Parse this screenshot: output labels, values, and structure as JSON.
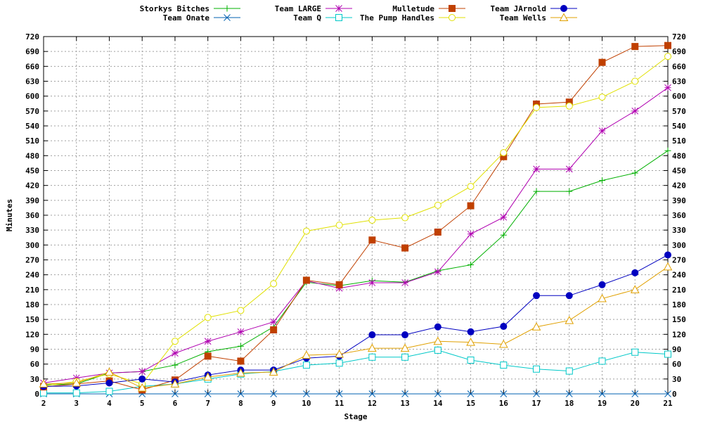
{
  "chart_data": {
    "type": "line",
    "title": "",
    "xlabel": "Stage",
    "ylabel": "Minutes",
    "x": [
      2,
      3,
      4,
      5,
      6,
      7,
      8,
      9,
      10,
      11,
      12,
      13,
      14,
      15,
      16,
      17,
      18,
      19,
      20,
      21
    ],
    "xlim": [
      2,
      21
    ],
    "ylim": [
      0,
      720
    ],
    "yticks": [
      0,
      30,
      60,
      90,
      120,
      150,
      180,
      210,
      240,
      270,
      300,
      330,
      360,
      390,
      420,
      450,
      480,
      510,
      540,
      570,
      600,
      630,
      660,
      690,
      720
    ],
    "xticks": [
      2,
      3,
      4,
      5,
      6,
      7,
      8,
      9,
      10,
      11,
      12,
      13,
      14,
      15,
      16,
      17,
      18,
      19,
      20,
      21
    ],
    "grid": true,
    "y_axis_mirrored_right": true,
    "legend_position": "top",
    "series": [
      {
        "name": "Storkys Bitches",
        "color": "#00b000",
        "marker": "plus",
        "values": [
          18,
          20,
          42,
          45,
          58,
          85,
          96,
          135,
          225,
          218,
          228,
          225,
          248,
          260,
          320,
          408,
          408,
          430,
          445,
          490
        ]
      },
      {
        "name": "Team Onate",
        "color": "#0060b0",
        "marker": "cross",
        "values": [
          0,
          0,
          0,
          0,
          0,
          0,
          0,
          0,
          0,
          0,
          0,
          0,
          0,
          0,
          0,
          0,
          0,
          0,
          0,
          0
        ]
      },
      {
        "name": "Team LARGE",
        "color": "#b000b0",
        "marker": "star",
        "values": [
          22,
          32,
          42,
          45,
          82,
          106,
          125,
          145,
          228,
          213,
          224,
          224,
          246,
          322,
          356,
          453,
          453,
          530,
          570,
          617
        ]
      },
      {
        "name": "Team Q",
        "color": "#00c8c8",
        "marker": "open-square",
        "values": [
          2,
          2,
          5,
          15,
          20,
          30,
          40,
          45,
          58,
          62,
          74,
          74,
          88,
          68,
          58,
          50,
          46,
          66,
          84,
          80
        ]
      },
      {
        "name": "Mulletude",
        "color": "#c04000",
        "marker": "filled-square",
        "values": [
          14,
          20,
          26,
          8,
          28,
          76,
          66,
          129,
          229,
          220,
          310,
          294,
          326,
          379,
          478,
          584,
          588,
          668,
          700,
          702
        ]
      },
      {
        "name": "The Pump Handles",
        "color": "#e0e000",
        "marker": "open-circle",
        "values": [
          16,
          25,
          40,
          20,
          106,
          154,
          168,
          222,
          328,
          340,
          350,
          355,
          380,
          418,
          486,
          577,
          580,
          598,
          630,
          680
        ]
      },
      {
        "name": "Team JArnold",
        "color": "#0000c0",
        "marker": "filled-circle",
        "values": [
          15,
          16,
          22,
          30,
          24,
          38,
          48,
          48,
          72,
          76,
          119,
          119,
          135,
          125,
          136,
          198,
          198,
          220,
          244,
          280
        ]
      },
      {
        "name": "Team Wells",
        "color": "#e0a000",
        "marker": "open-triangle",
        "values": [
          20,
          22,
          44,
          12,
          20,
          34,
          42,
          44,
          78,
          80,
          92,
          92,
          106,
          104,
          100,
          135,
          148,
          192,
          210,
          256
        ]
      }
    ]
  }
}
